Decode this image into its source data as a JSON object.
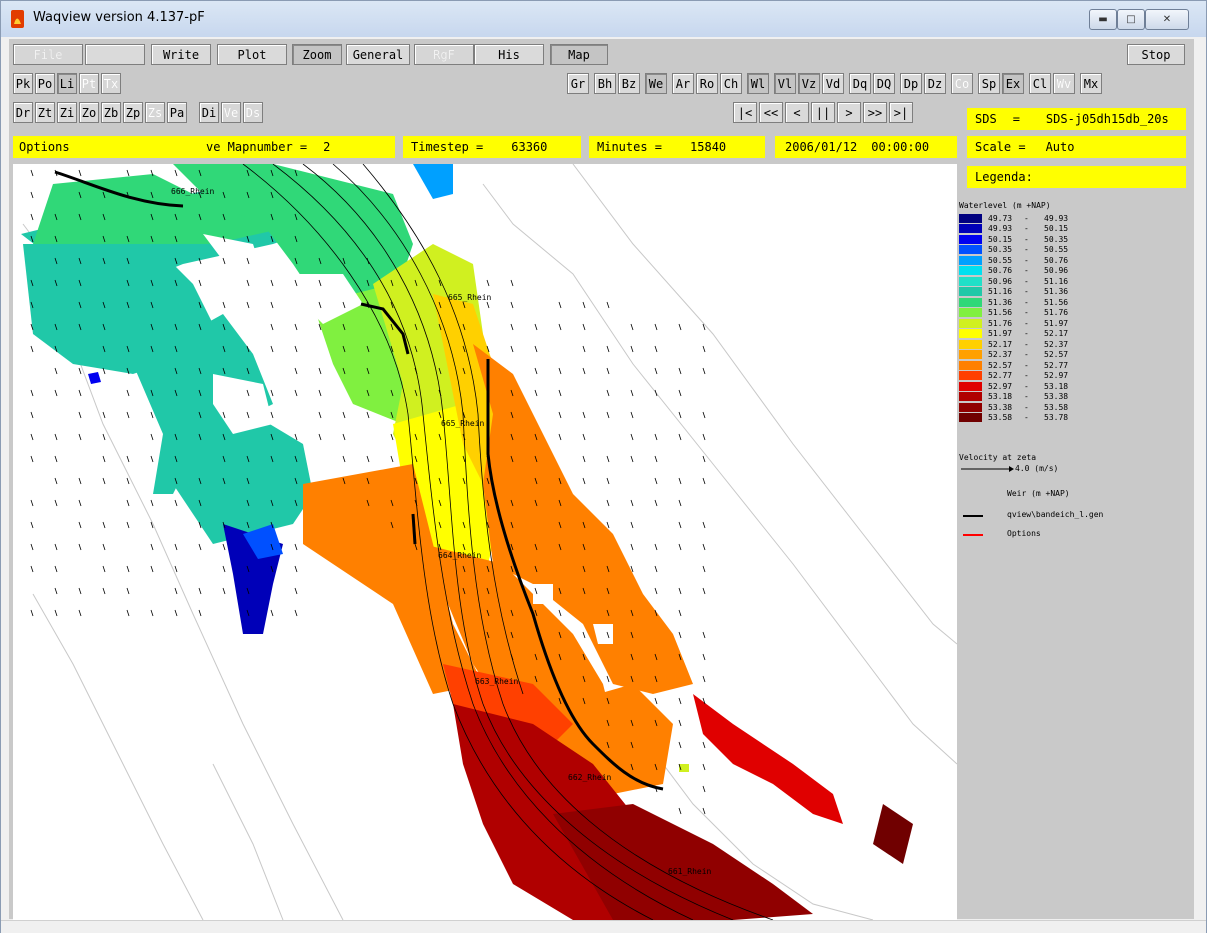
{
  "window": {
    "title": "Waqview version 4.137-pF",
    "controls": [
      "minimize",
      "maximize",
      "close"
    ]
  },
  "menu": {
    "file": "File",
    "write": "Write",
    "plot": "Plot",
    "zoom": "Zoom",
    "general": "General",
    "rgf": "RgF",
    "his": "His",
    "map": "Map",
    "stop": "Stop"
  },
  "toolbar_row1_left": [
    "Pk",
    "Po",
    "Li",
    "Pt",
    "Tx"
  ],
  "toolbar_row1_right": [
    "Gr",
    "Bh",
    "Bz",
    "We",
    "Ar",
    "Ro",
    "Ch",
    "Wl",
    "Vl",
    "Vz",
    "Vd",
    "Dq",
    "DQ",
    "Dp",
    "Dz",
    "Co",
    "Sp",
    "Ex",
    "Cl",
    "Wv",
    "Mx"
  ],
  "toolbar_row2_left": [
    "Dr",
    "Zt",
    "Zi",
    "Zo",
    "Zb",
    "Zp",
    "Zs",
    "Pa",
    "Di",
    "Ve",
    "Ds"
  ],
  "playback": [
    "|<",
    "<<",
    "<",
    "||",
    ">",
    ">>",
    ">|"
  ],
  "status": {
    "options": "Options",
    "mapnumber_label": "ve Mapnumber =",
    "mapnumber_value": "2",
    "timestep_label": "Timestep =",
    "timestep_value": "63360",
    "minutes_label": "Minutes =",
    "minutes_value": "15840",
    "date": "2006/01/12",
    "time": "00:00:00"
  },
  "side": {
    "sds_label": "SDS",
    "sds_eq": "=",
    "sds_value": "SDS-j05dh15db_20s",
    "scale_label": "Scale =",
    "scale_value": "Auto",
    "legenda": "Legenda:"
  },
  "legend": {
    "title": "Waterlevel (m +NAP)",
    "rows": [
      {
        "from": "49.73",
        "to": "49.93",
        "color": "#00007f"
      },
      {
        "from": "49.93",
        "to": "50.15",
        "color": "#0000b8"
      },
      {
        "from": "50.15",
        "to": "50.35",
        "color": "#0000f0"
      },
      {
        "from": "50.35",
        "to": "50.55",
        "color": "#0050ff"
      },
      {
        "from": "50.55",
        "to": "50.76",
        "color": "#00a0ff"
      },
      {
        "from": "50.76",
        "to": "50.96",
        "color": "#00e0f0"
      },
      {
        "from": "50.96",
        "to": "51.16",
        "color": "#20e0c8"
      },
      {
        "from": "51.16",
        "to": "51.36",
        "color": "#20c8a8"
      },
      {
        "from": "51.36",
        "to": "51.56",
        "color": "#30d878"
      },
      {
        "from": "51.56",
        "to": "51.76",
        "color": "#80f040"
      },
      {
        "from": "51.76",
        "to": "51.97",
        "color": "#d0f020"
      },
      {
        "from": "51.97",
        "to": "52.17",
        "color": "#ffff00"
      },
      {
        "from": "52.17",
        "to": "52.37",
        "color": "#ffd000"
      },
      {
        "from": "52.37",
        "to": "52.57",
        "color": "#ffa000"
      },
      {
        "from": "52.57",
        "to": "52.77",
        "color": "#ff8000"
      },
      {
        "from": "52.77",
        "to": "52.97",
        "color": "#ff4000"
      },
      {
        "from": "52.97",
        "to": "53.18",
        "color": "#e00000"
      },
      {
        "from": "53.18",
        "to": "53.38",
        "color": "#b00000"
      },
      {
        "from": "53.38",
        "to": "53.58",
        "color": "#900000"
      },
      {
        "from": "53.58",
        "to": "53.78",
        "color": "#700000"
      }
    ],
    "velocity_title": "Velocity at zeta",
    "velocity_value": "4.0 (m/s)",
    "weir_title": "Weir (m +NAP)",
    "line1_label": "qview\\bandeich_l.gen",
    "line2_label": "Options"
  },
  "map_labels": [
    "666_Rhein",
    "665_Rhein",
    "665_Rhein",
    "664_Rhein",
    "663_Rhein",
    "662_Rhein",
    "661_Rhein"
  ]
}
